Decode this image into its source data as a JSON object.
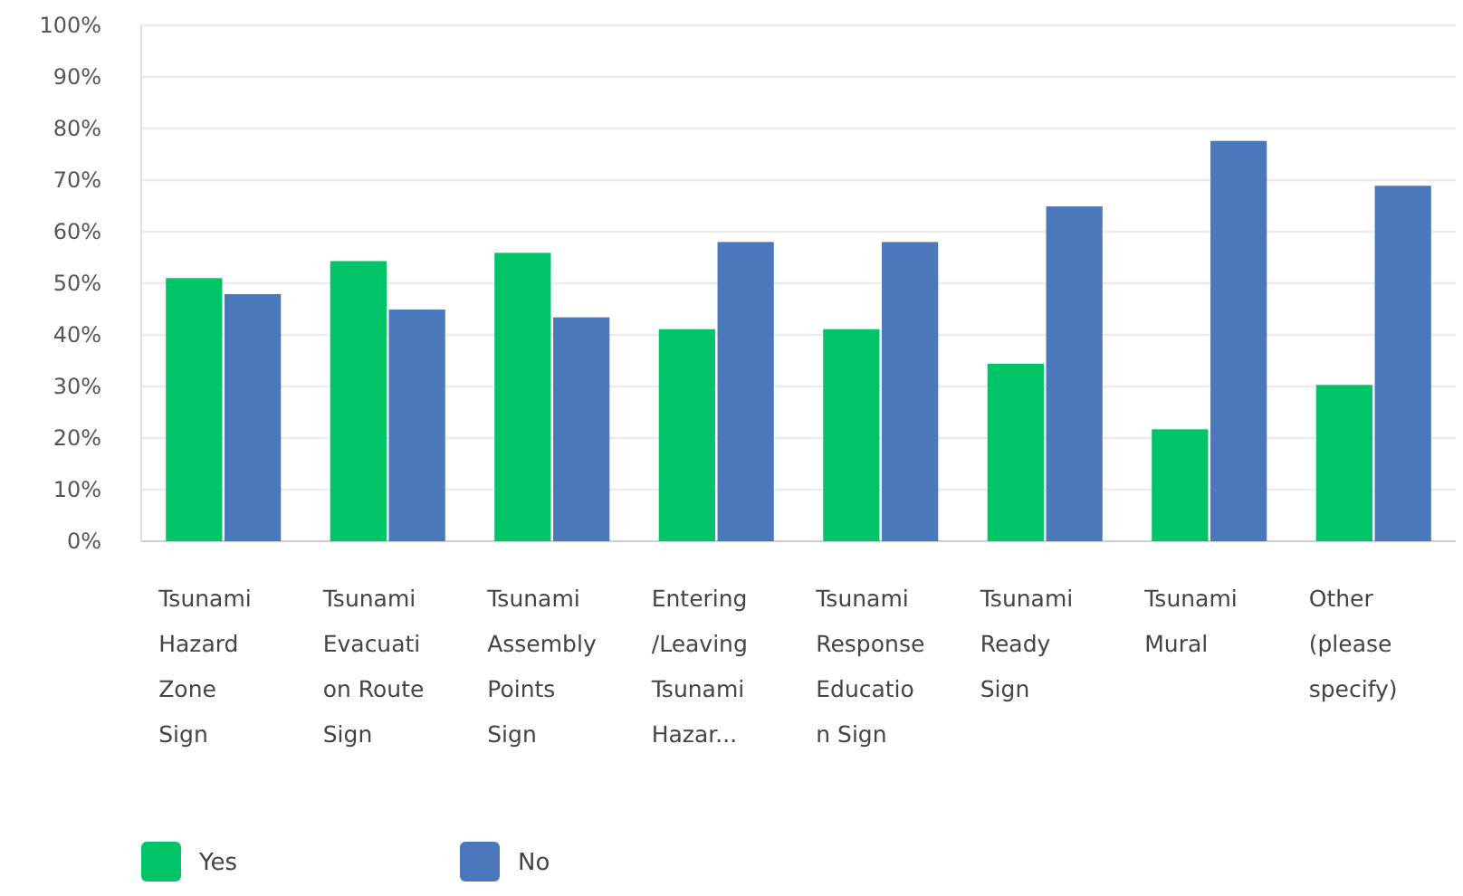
{
  "chart_data": {
    "type": "bar",
    "categories": [
      "Tsunami Hazard Zone Sign",
      "Tsunami Evacuation Route Sign",
      "Tsunami Assembly Points Sign",
      "Entering/Leaving Tsunami Hazar...",
      "Tsunami Response Education Sign",
      "Tsunami Ready Sign",
      "Tsunami Mural",
      "Other (please specify)"
    ],
    "series": [
      {
        "name": "Yes",
        "color": "#00c468",
        "values": [
          51.0,
          54.3,
          55.9,
          41.1,
          41.1,
          34.4,
          21.7,
          30.3
        ]
      },
      {
        "name": "No",
        "color": "#4a78bb",
        "values": [
          47.9,
          44.9,
          43.4,
          58.0,
          58.0,
          64.9,
          77.6,
          68.9
        ]
      }
    ],
    "ylim": [
      0,
      100
    ],
    "yticks": [
      {
        "value": 0,
        "label": "0%"
      },
      {
        "value": 10,
        "label": "10%"
      },
      {
        "value": 20,
        "label": "20%"
      },
      {
        "value": 30,
        "label": "30%"
      },
      {
        "value": 40,
        "label": "40%"
      },
      {
        "value": 50,
        "label": "50%"
      },
      {
        "value": 60,
        "label": "60%"
      },
      {
        "value": 70,
        "label": "70%"
      },
      {
        "value": 80,
        "label": "80%"
      },
      {
        "value": 90,
        "label": "90%"
      },
      {
        "value": 100,
        "label": "100%"
      }
    ],
    "grid": "y",
    "legend": "bottom left"
  }
}
